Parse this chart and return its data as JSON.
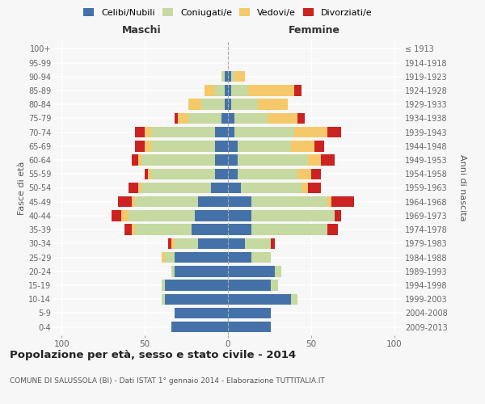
{
  "age_groups": [
    "0-4",
    "5-9",
    "10-14",
    "15-19",
    "20-24",
    "25-29",
    "30-34",
    "35-39",
    "40-44",
    "45-49",
    "50-54",
    "55-59",
    "60-64",
    "65-69",
    "70-74",
    "75-79",
    "80-84",
    "85-89",
    "90-94",
    "95-99",
    "100+"
  ],
  "birth_years": [
    "2009-2013",
    "2004-2008",
    "1999-2003",
    "1994-1998",
    "1989-1993",
    "1984-1988",
    "1979-1983",
    "1974-1978",
    "1969-1973",
    "1964-1968",
    "1959-1963",
    "1954-1958",
    "1949-1953",
    "1944-1948",
    "1939-1943",
    "1934-1938",
    "1929-1933",
    "1924-1928",
    "1919-1923",
    "1914-1918",
    "≤ 1913"
  ],
  "maschi": {
    "celibi": [
      34,
      32,
      38,
      38,
      32,
      32,
      18,
      22,
      20,
      18,
      10,
      8,
      8,
      8,
      8,
      4,
      2,
      2,
      2,
      0,
      0
    ],
    "coniugati": [
      0,
      0,
      2,
      2,
      2,
      6,
      14,
      34,
      40,
      38,
      42,
      38,
      44,
      38,
      38,
      20,
      14,
      6,
      2,
      0,
      0
    ],
    "vedovi": [
      0,
      0,
      0,
      0,
      0,
      2,
      2,
      2,
      4,
      2,
      2,
      2,
      2,
      4,
      4,
      6,
      8,
      6,
      0,
      0,
      0
    ],
    "divorziati": [
      0,
      0,
      0,
      0,
      0,
      0,
      2,
      4,
      6,
      8,
      6,
      2,
      4,
      6,
      6,
      2,
      0,
      0,
      0,
      0,
      0
    ]
  },
  "femmine": {
    "celibi": [
      26,
      26,
      38,
      26,
      28,
      14,
      10,
      14,
      14,
      14,
      8,
      6,
      6,
      6,
      4,
      4,
      2,
      2,
      2,
      0,
      0
    ],
    "coniugati": [
      0,
      0,
      4,
      4,
      4,
      12,
      16,
      46,
      50,
      46,
      36,
      36,
      42,
      32,
      36,
      20,
      16,
      10,
      2,
      0,
      0
    ],
    "vedovi": [
      0,
      0,
      0,
      0,
      0,
      0,
      0,
      0,
      0,
      2,
      4,
      8,
      8,
      14,
      20,
      18,
      18,
      28,
      6,
      0,
      0
    ],
    "divorziati": [
      0,
      0,
      0,
      0,
      0,
      0,
      2,
      6,
      4,
      14,
      8,
      6,
      8,
      6,
      8,
      4,
      0,
      4,
      0,
      0,
      0
    ]
  },
  "colors": {
    "celibi": "#4472a8",
    "coniugati": "#c5d9a0",
    "vedovi": "#f5c96a",
    "divorziati": "#cc2222"
  },
  "xlim": 105,
  "title": "Popolazione per età, sesso e stato civile - 2014",
  "subtitle": "COMUNE DI SALUSSOLA (BI) - Dati ISTAT 1° gennaio 2014 - Elaborazione TUTTITALIA.IT",
  "ylabel_left": "Fasce di età",
  "ylabel_right": "Anni di nascita",
  "xlabel_maschi": "Maschi",
  "xlabel_femmine": "Femmine",
  "legend_labels": [
    "Celibi/Nubili",
    "Coniugati/e",
    "Vedovi/e",
    "Divorziati/e"
  ],
  "bg_color": "#f7f7f7",
  "bar_height": 0.78
}
